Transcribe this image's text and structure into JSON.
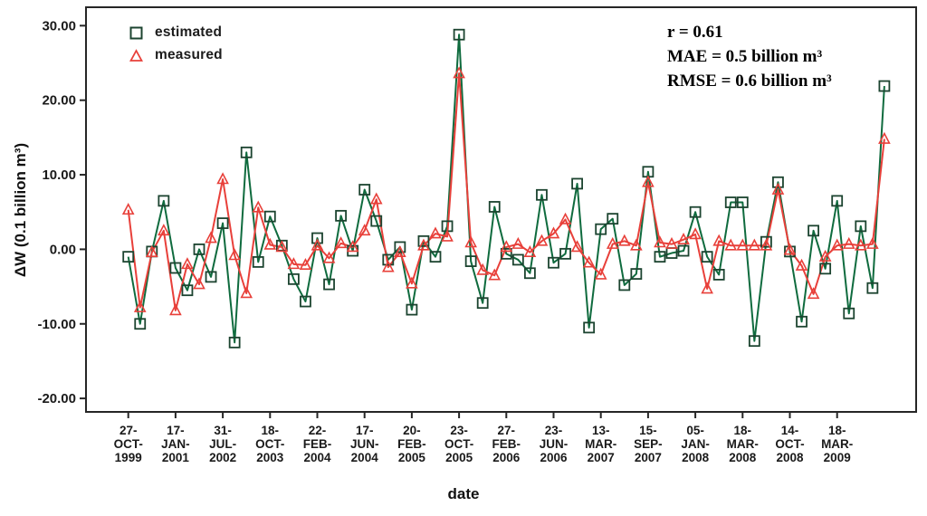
{
  "chart_data": {
    "type": "line",
    "title": "",
    "xlabel": "date",
    "ylabel": "ΔW (0.1 billion m³)",
    "ylim": [
      -24,
      32
    ],
    "y_ticks": [
      30,
      20,
      10,
      0,
      -10,
      -20
    ],
    "y_tick_labels": [
      "30.00",
      "20.00",
      "10.00",
      "0.00",
      "-10.00",
      "-20.00"
    ],
    "x_tick_every": 4,
    "x_tick_labels": [
      "27-OCT-1999",
      "17-JAN-2001",
      "31-JUL-2002",
      "18-OCT-2003",
      "22-FEB-2004",
      "17-JUN-2004",
      "20-FEB-2005",
      "23-OCT-2005",
      "27-FEB-2006",
      "23-JUN-2006",
      "13-MAR-2007",
      "15-SEP-2007",
      "05-JAN-2008",
      "18-MAR-2008",
      "14-OCT-2008",
      "18-MAR-2009"
    ],
    "grid": false,
    "legend_position": "top-left-inside",
    "series": [
      {
        "name": "estimated",
        "marker": "square",
        "color": "#0f6b3e",
        "marker_color": "#1c4430",
        "values": [
          -1.0,
          -10.0,
          -0.3,
          6.5,
          -2.5,
          -5.5,
          0.0,
          -3.7,
          3.5,
          -12.5,
          13.0,
          -1.7,
          4.4,
          0.5,
          -4.0,
          -7.0,
          1.5,
          -4.7,
          4.5,
          -0.2,
          8.0,
          3.8,
          -1.4,
          0.3,
          -8.1,
          1.1,
          -1.0,
          3.1,
          28.8,
          -1.6,
          -7.2,
          5.7,
          -0.6,
          -1.4,
          -3.2,
          7.3,
          -1.8,
          -0.6,
          8.8,
          -10.5,
          2.7,
          4.1,
          -4.8,
          -3.3,
          10.4,
          -1.0,
          -0.5,
          -0.2,
          5.0,
          -1.0,
          -3.4,
          6.3,
          6.3,
          -12.3,
          1.0,
          9.0,
          -0.3,
          -9.7,
          2.5,
          -2.6,
          6.5,
          -8.6,
          3.1,
          -5.2,
          21.9
        ]
      },
      {
        "name": "measured",
        "marker": "triangle",
        "color": "#e8403a",
        "marker_color": "#e8403a",
        "values": [
          5.3,
          -7.8,
          -0.4,
          2.5,
          -8.2,
          -2.0,
          -4.7,
          1.5,
          9.4,
          -0.8,
          -5.9,
          5.6,
          0.6,
          0.3,
          -2.0,
          -2.1,
          0.5,
          -1.2,
          0.8,
          0.3,
          2.5,
          6.7,
          -2.4,
          -0.4,
          -4.6,
          0.5,
          2.1,
          1.7,
          23.6,
          0.9,
          -2.8,
          -3.5,
          0.3,
          0.7,
          -0.4,
          1.1,
          2.1,
          4.0,
          0.3,
          -1.8,
          -3.4,
          0.7,
          1.1,
          0.5,
          9.0,
          0.9,
          0.7,
          1.3,
          2.0,
          -5.3,
          1.1,
          0.5,
          0.5,
          0.5,
          0.5,
          8.0,
          -0.1,
          -2.2,
          -6.0,
          -1.0,
          0.5,
          0.7,
          0.5,
          0.7,
          14.8
        ]
      }
    ],
    "annotations": {
      "lines": [
        "r = 0.61",
        "MAE = 0.5 billion m³",
        "RMSE = 0.6 billion m³"
      ]
    }
  },
  "legend": {
    "estimated_label": "estimated",
    "measured_label": "measured"
  },
  "axis": {
    "x_title": "date",
    "y_title": "ΔW (0.1 billion m³)"
  },
  "colors": {
    "estimated": "#0f6b3e",
    "measured": "#e8403a",
    "frame": "#262626",
    "text": "#1a1a1a"
  }
}
